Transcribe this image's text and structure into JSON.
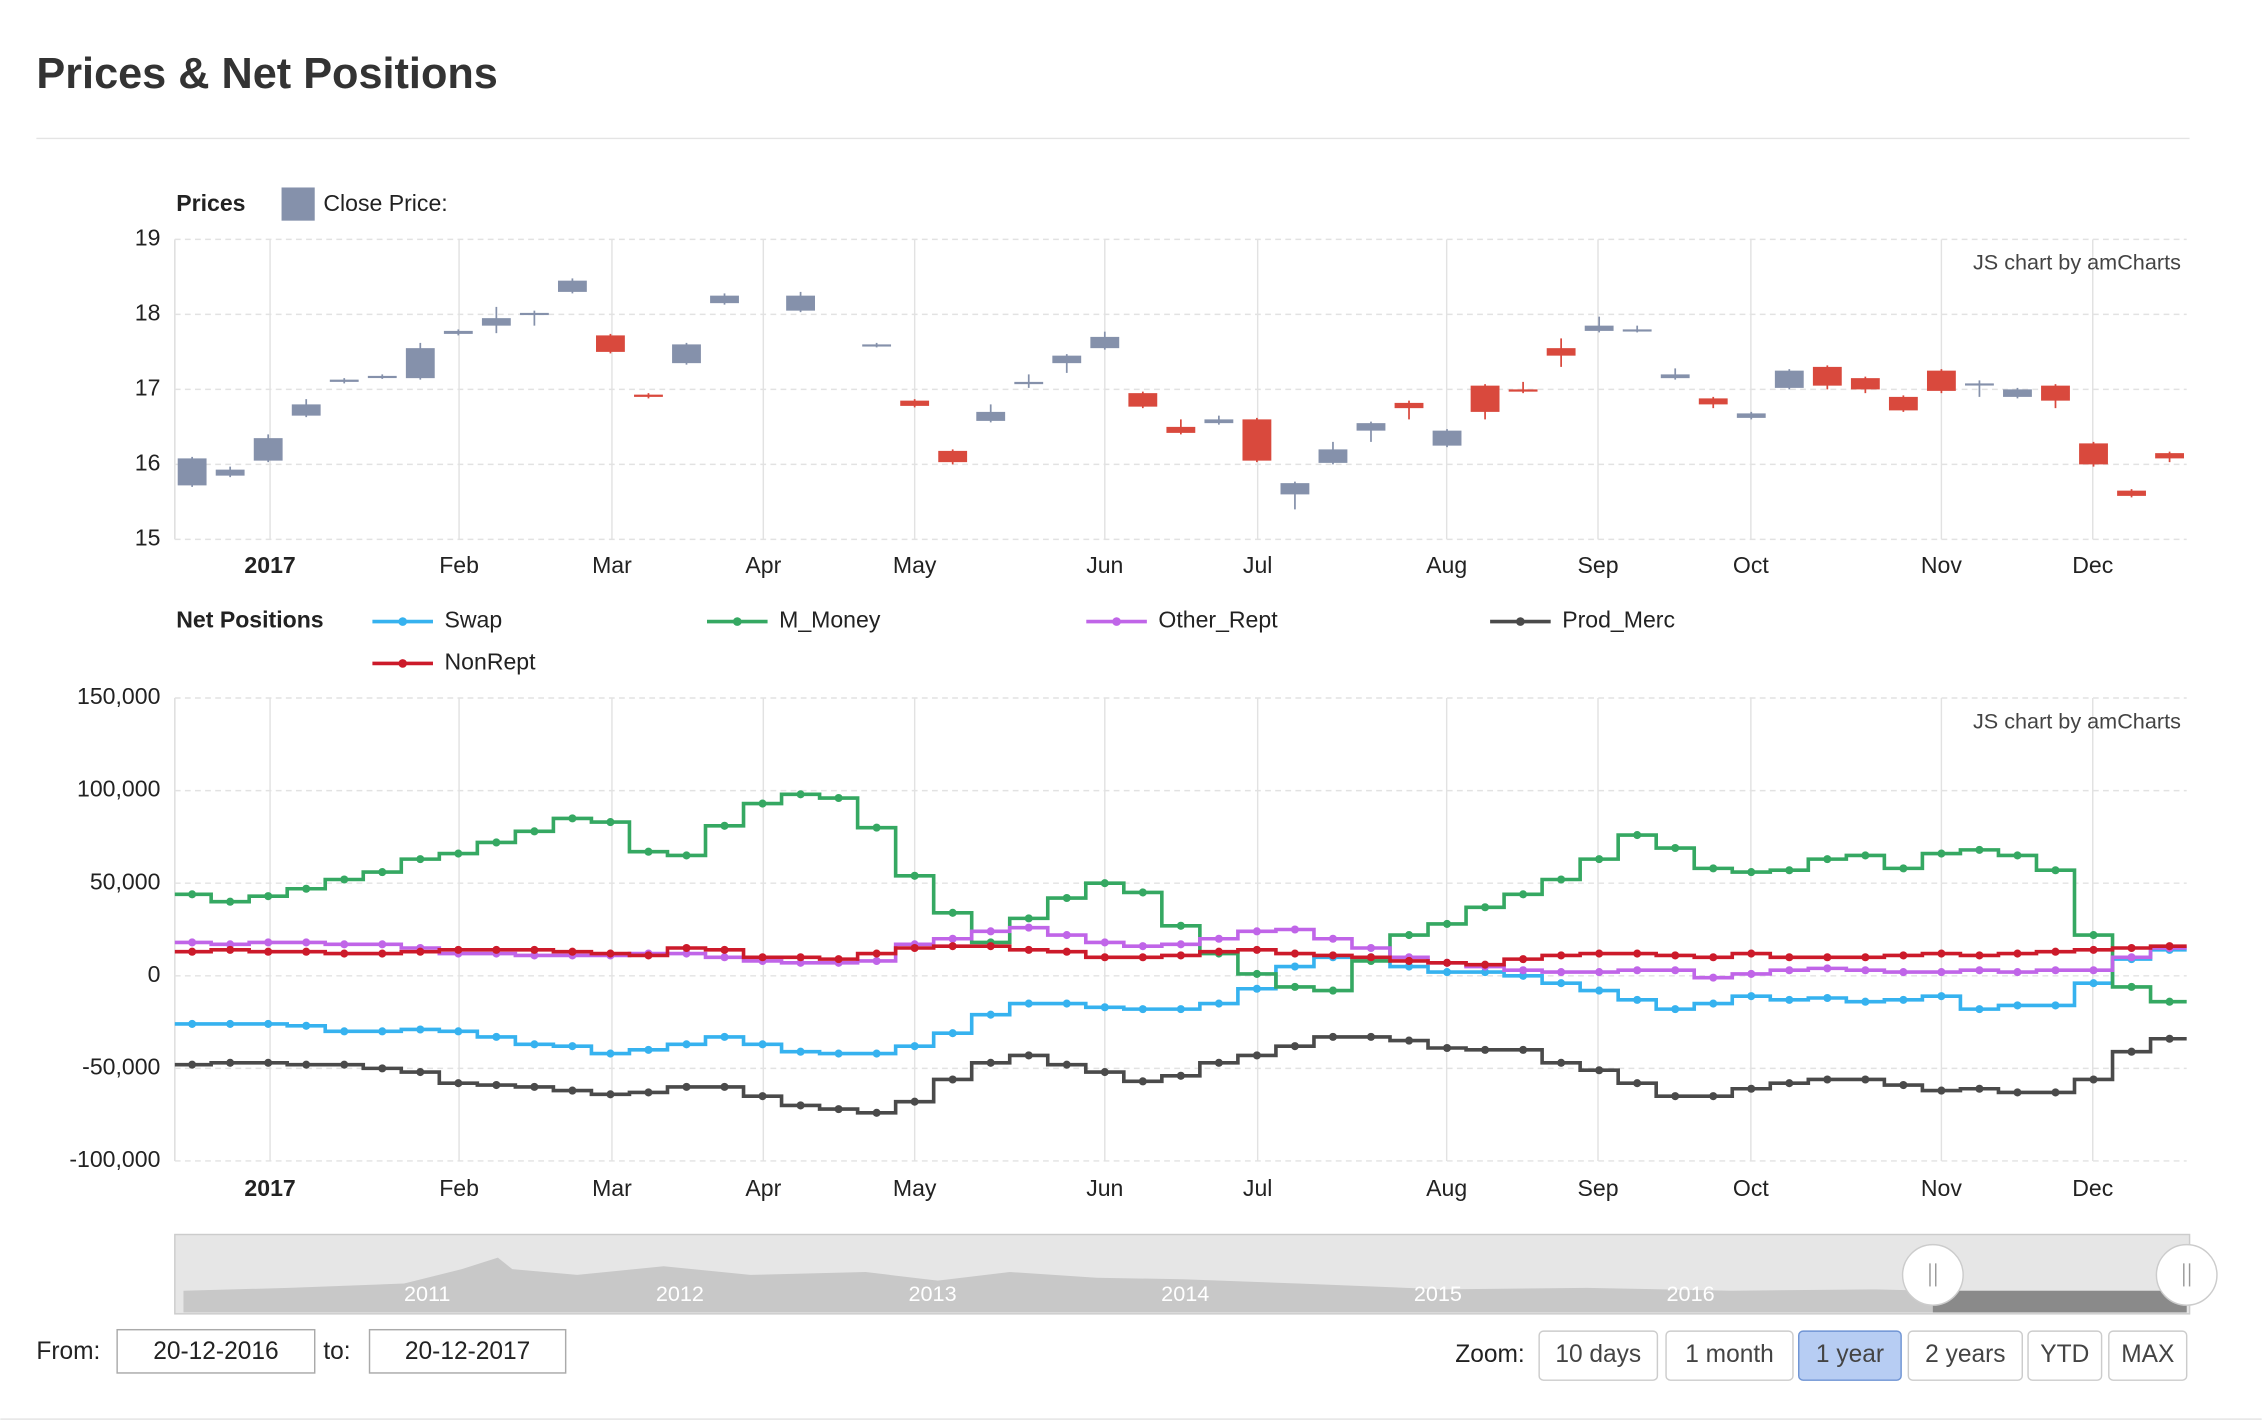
{
  "title": "Prices & Net Positions",
  "chart_data": [
    {
      "type": "candlestick",
      "label": "Prices",
      "credit": "JS chart by amCharts",
      "series": [
        {
          "name": "Close Price:",
          "color": "#8591ab",
          "down_color": "#d9493d",
          "open": [
            15.72,
            15.85,
            16.05,
            16.65,
            17.1,
            17.16,
            17.15,
            17.74,
            17.85,
            18.0,
            18.3,
            17.72,
            16.93,
            17.35,
            18.15,
            null,
            18.05,
            null,
            17.58,
            16.85,
            16.18,
            16.58,
            17.07,
            17.35,
            17.55,
            16.95,
            16.5,
            16.55,
            16.6,
            15.6,
            16.02,
            16.45,
            16.82,
            16.25,
            17.05,
            17.0,
            17.55,
            17.78,
            17.78,
            17.15,
            16.88,
            16.62,
            17.02,
            17.3,
            17.15,
            16.9,
            17.25,
            17.06,
            16.9,
            17.05,
            16.28,
            15.65,
            16.15
          ],
          "high": [
            16.1,
            15.97,
            16.4,
            16.87,
            17.15,
            17.2,
            17.62,
            17.8,
            18.1,
            18.05,
            18.48,
            17.74,
            16.95,
            17.62,
            18.28,
            null,
            18.3,
            null,
            17.62,
            16.87,
            16.2,
            16.8,
            17.2,
            17.47,
            17.77,
            16.97,
            16.6,
            16.65,
            16.62,
            15.77,
            16.3,
            16.57,
            16.85,
            16.47,
            17.07,
            17.1,
            17.68,
            17.97,
            17.85,
            17.28,
            16.9,
            16.7,
            17.27,
            17.32,
            17.17,
            16.92,
            17.27,
            17.12,
            17.02,
            17.07,
            16.3,
            15.67,
            16.17
          ],
          "low": [
            15.7,
            15.83,
            16.03,
            16.63,
            17.08,
            17.14,
            17.13,
            17.72,
            17.75,
            17.85,
            18.28,
            17.48,
            16.88,
            17.33,
            18.13,
            null,
            18.03,
            null,
            17.56,
            16.76,
            16.0,
            16.56,
            17.02,
            17.22,
            17.53,
            16.75,
            16.4,
            16.53,
            16.03,
            15.4,
            16.0,
            16.3,
            16.6,
            16.23,
            16.6,
            16.95,
            17.3,
            17.76,
            17.76,
            17.13,
            16.75,
            16.6,
            17.0,
            17.0,
            16.95,
            16.7,
            16.95,
            16.9,
            16.88,
            16.75,
            15.97,
            15.56,
            16.03
          ],
          "close": [
            16.08,
            15.93,
            16.35,
            16.8,
            17.13,
            17.18,
            17.55,
            17.78,
            17.95,
            18.02,
            18.45,
            17.5,
            16.9,
            17.6,
            18.25,
            null,
            18.25,
            null,
            17.6,
            16.78,
            16.03,
            16.7,
            17.1,
            17.45,
            17.7,
            16.77,
            16.42,
            16.6,
            16.05,
            15.75,
            16.2,
            16.55,
            16.75,
            16.45,
            16.7,
            16.97,
            17.45,
            17.85,
            17.8,
            17.2,
            16.8,
            16.68,
            17.25,
            17.05,
            17.0,
            16.72,
            16.98,
            17.08,
            17.0,
            16.85,
            16.0,
            15.58,
            16.08
          ]
        }
      ],
      "xlim": [
        -0.455,
        52.45
      ],
      "xticks": [
        {
          "value": 2.05,
          "label": "2017"
        },
        {
          "value": 7.02,
          "label": "Feb"
        },
        {
          "value": 11.04,
          "label": "Mar"
        },
        {
          "value": 15.02,
          "label": "Apr"
        },
        {
          "value": 19.0,
          "label": "May"
        },
        {
          "value": 24.0,
          "label": "Jun"
        },
        {
          "value": 28.02,
          "label": "Jul"
        },
        {
          "value": 32.99,
          "label": "Aug"
        },
        {
          "value": 36.97,
          "label": "Sep"
        },
        {
          "value": 40.99,
          "label": "Oct"
        },
        {
          "value": 46.0,
          "label": "Nov"
        },
        {
          "value": 49.98,
          "label": "Dec"
        }
      ],
      "ylim": [
        15,
        19
      ],
      "yticks": [
        15,
        16,
        17,
        18,
        19
      ],
      "grid": true
    },
    {
      "type": "step-line",
      "label": "Net Positions",
      "credit": "JS chart by amCharts",
      "series": [
        {
          "name": "Swap",
          "color": "#36b2ef",
          "values": [
            -26000,
            -26000,
            -26000,
            -27000,
            -30000,
            -30000,
            -29000,
            -30000,
            -33000,
            -37000,
            -38000,
            -42000,
            -40000,
            -37000,
            -33000,
            -37000,
            -41000,
            -42000,
            -42000,
            -38000,
            -31000,
            -21000,
            -15000,
            -15000,
            -17000,
            -18000,
            -18000,
            -15000,
            -7000,
            5000,
            10000,
            10000,
            5000,
            2000,
            2000,
            0,
            -4000,
            -8000,
            -13000,
            -18000,
            -15000,
            -11000,
            -13000,
            -12000,
            -14000,
            -13000,
            -11000,
            -18000,
            -16000,
            -16000,
            -4000,
            9000,
            14000
          ]
        },
        {
          "name": "M_Money",
          "color": "#35a862",
          "values": [
            44000,
            40000,
            43000,
            47000,
            52000,
            56000,
            63000,
            66000,
            72000,
            78000,
            85000,
            83000,
            67000,
            65000,
            81000,
            93000,
            98000,
            96000,
            80000,
            54000,
            34000,
            18000,
            31000,
            42000,
            50000,
            45000,
            27000,
            12000,
            1000,
            -6000,
            -8000,
            8000,
            22000,
            28000,
            37000,
            44000,
            52000,
            63000,
            76000,
            69000,
            58000,
            56000,
            57000,
            63000,
            65000,
            58000,
            66000,
            68000,
            65000,
            57000,
            22000,
            -6000,
            -14000
          ]
        },
        {
          "name": "Other_Rept",
          "color": "#c065e8",
          "values": [
            18000,
            17000,
            18000,
            18000,
            17000,
            17000,
            15000,
            12000,
            12000,
            11000,
            11000,
            11000,
            12000,
            12000,
            10000,
            8000,
            7000,
            7000,
            8000,
            17000,
            20000,
            24000,
            26000,
            22000,
            18000,
            16000,
            17000,
            20000,
            24000,
            25000,
            20000,
            15000,
            10000,
            7000,
            5000,
            3000,
            2000,
            2000,
            3000,
            3000,
            -1000,
            1000,
            3000,
            4000,
            3000,
            2000,
            2000,
            3000,
            2000,
            3000,
            3000,
            10000,
            15000
          ]
        },
        {
          "name": "Prod_Merc",
          "color": "#4a4a4a",
          "values": [
            -48000,
            -47000,
            -47000,
            -48000,
            -48000,
            -50000,
            -52000,
            -58000,
            -59000,
            -60000,
            -62000,
            -64000,
            -63000,
            -60000,
            -60000,
            -65000,
            -70000,
            -72000,
            -74000,
            -68000,
            -56000,
            -47000,
            -43000,
            -48000,
            -52000,
            -57000,
            -54000,
            -47000,
            -43000,
            -38000,
            -33000,
            -33000,
            -35000,
            -39000,
            -40000,
            -40000,
            -47000,
            -51000,
            -58000,
            -65000,
            -65000,
            -61000,
            -58000,
            -56000,
            -56000,
            -59000,
            -62000,
            -61000,
            -63000,
            -63000,
            -56000,
            -41000,
            -34000
          ]
        },
        {
          "name": "NonRept",
          "color": "#cc1a2a",
          "values": [
            13000,
            14000,
            13000,
            13000,
            12000,
            12000,
            13000,
            14000,
            14000,
            14000,
            13000,
            12000,
            11000,
            15000,
            14000,
            10000,
            10000,
            9000,
            12000,
            15000,
            16000,
            16000,
            14000,
            13000,
            10000,
            10000,
            11000,
            13000,
            14000,
            12000,
            11000,
            10000,
            8000,
            7000,
            6000,
            9000,
            11000,
            12000,
            12000,
            11000,
            10000,
            12000,
            10000,
            10000,
            10000,
            11000,
            12000,
            11000,
            12000,
            13000,
            14000,
            15000,
            16000
          ]
        }
      ],
      "xlim": [
        -0.455,
        52.45
      ],
      "xticks": [
        {
          "value": 2.05,
          "label": "2017"
        },
        {
          "value": 7.02,
          "label": "Feb"
        },
        {
          "value": 11.04,
          "label": "Mar"
        },
        {
          "value": 15.02,
          "label": "Apr"
        },
        {
          "value": 19.0,
          "label": "May"
        },
        {
          "value": 24.0,
          "label": "Jun"
        },
        {
          "value": 28.02,
          "label": "Jul"
        },
        {
          "value": 32.99,
          "label": "Aug"
        },
        {
          "value": 36.97,
          "label": "Sep"
        },
        {
          "value": 40.99,
          "label": "Oct"
        },
        {
          "value": 46.0,
          "label": "Nov"
        },
        {
          "value": 49.98,
          "label": "Dec"
        }
      ],
      "ylim": [
        -100000,
        150000
      ],
      "yticks": [
        {
          "value": -100000,
          "label": "-100,000"
        },
        {
          "value": -50000,
          "label": "-50,000"
        },
        0,
        {
          "value": 50000,
          "label": "50,000"
        },
        {
          "value": 100000,
          "label": "100,000"
        },
        {
          "value": 150000,
          "label": "150,000"
        }
      ],
      "grid": true
    }
  ],
  "navigator": {
    "labels": [
      "2011",
      "2012",
      "2013",
      "2014",
      "2015",
      "2016"
    ]
  },
  "controls": {
    "from_label": "From:",
    "from": "20-12-2016",
    "to_label": "to:",
    "to": "20-12-2017",
    "zoom_label": "Zoom:",
    "buttons": [
      "10 days",
      "1 month",
      "1 year",
      "2 years",
      "YTD",
      "MAX"
    ],
    "selected": 2
  }
}
